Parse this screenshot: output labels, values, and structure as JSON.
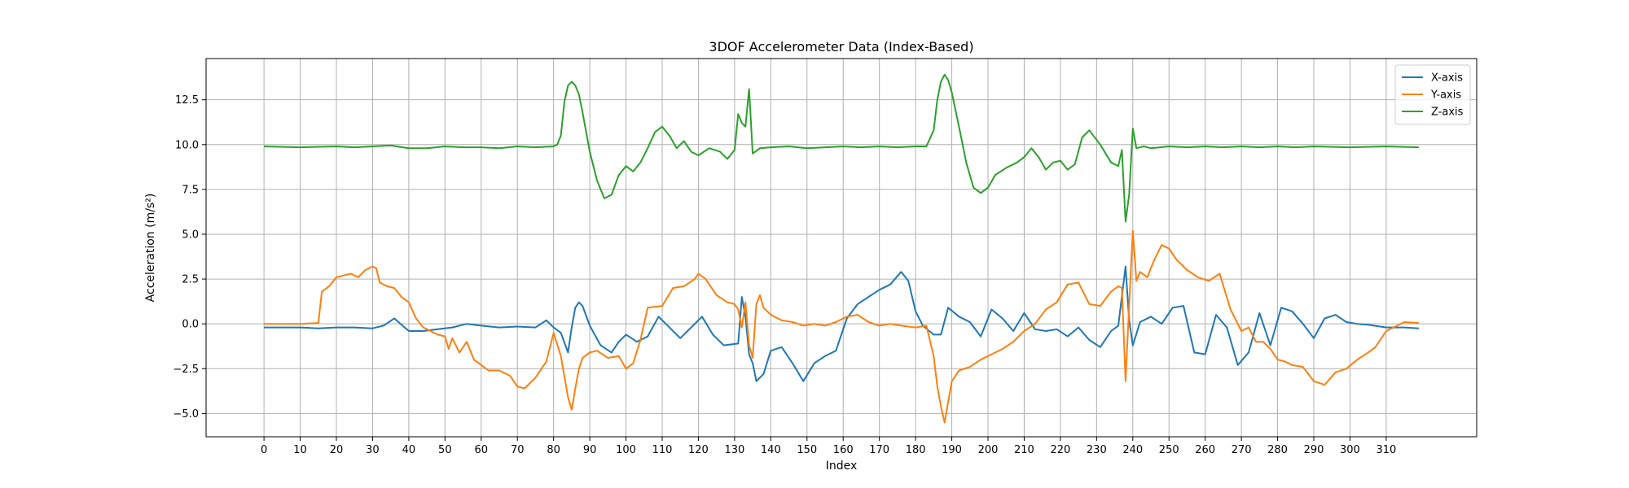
{
  "chart_data": {
    "type": "line",
    "title": "3DOF Accelerometer Data (Index-Based)",
    "xlabel": "Index",
    "ylabel": "Acceleration (m/s²)",
    "xlim": [
      -16,
      335
    ],
    "ylim": [
      -6.3,
      14.8
    ],
    "x_ticks": [
      0,
      10,
      20,
      30,
      40,
      50,
      60,
      70,
      80,
      90,
      100,
      110,
      120,
      130,
      140,
      150,
      160,
      170,
      180,
      190,
      200,
      210,
      220,
      230,
      240,
      250,
      260,
      270,
      280,
      290,
      300,
      310
    ],
    "y_ticks": [
      -5.0,
      -2.5,
      0.0,
      2.5,
      5.0,
      7.5,
      10.0,
      12.5
    ],
    "y_tick_labels": [
      "−5.0",
      "−2.5",
      "0.0",
      "2.5",
      "5.0",
      "7.5",
      "10.0",
      "12.5"
    ],
    "grid": true,
    "legend_position": "top-right",
    "series": [
      {
        "name": "X-axis",
        "color": "#1f77b4",
        "x": [
          0,
          10,
          15,
          20,
          25,
          30,
          33,
          36,
          40,
          44,
          48,
          52,
          56,
          60,
          65,
          70,
          75,
          78,
          80,
          82,
          84,
          85,
          86,
          87,
          88,
          90,
          93,
          96,
          98,
          100,
          103,
          106,
          109,
          112,
          115,
          118,
          121,
          124,
          127,
          131,
          132,
          133,
          134,
          135,
          136,
          138,
          140,
          143,
          146,
          149,
          152,
          155,
          158,
          161,
          164,
          167,
          170,
          173,
          176,
          178,
          180,
          182,
          185,
          187,
          189,
          192,
          195,
          198,
          201,
          204,
          207,
          210,
          213,
          216,
          219,
          222,
          225,
          228,
          231,
          234,
          236,
          238,
          239,
          240,
          242,
          245,
          248,
          251,
          254,
          257,
          260,
          263,
          266,
          269,
          272,
          275,
          278,
          281,
          284,
          287,
          290,
          293,
          296,
          299,
          302,
          305,
          310,
          315,
          319
        ],
        "y": [
          -0.2,
          -0.2,
          -0.25,
          -0.2,
          -0.2,
          -0.25,
          -0.1,
          0.3,
          -0.4,
          -0.4,
          -0.3,
          -0.2,
          0.0,
          -0.1,
          -0.2,
          -0.15,
          -0.2,
          0.2,
          -0.2,
          -0.5,
          -1.6,
          -0.2,
          0.9,
          1.2,
          1.0,
          -0.1,
          -1.2,
          -1.6,
          -1.0,
          -0.6,
          -1.0,
          -0.7,
          0.4,
          -0.2,
          -0.8,
          -0.2,
          0.4,
          -0.6,
          -1.2,
          -1.1,
          1.5,
          0.4,
          -1.7,
          -2.2,
          -3.2,
          -2.8,
          -1.5,
          -1.3,
          -2.2,
          -3.2,
          -2.2,
          -1.8,
          -1.5,
          0.3,
          1.1,
          1.5,
          1.9,
          2.2,
          2.9,
          2.4,
          0.7,
          -0.1,
          -0.6,
          -0.6,
          0.9,
          0.4,
          0.1,
          -0.7,
          0.8,
          0.3,
          -0.4,
          0.6,
          -0.3,
          -0.4,
          -0.3,
          -0.7,
          -0.2,
          -0.9,
          -1.3,
          -0.4,
          -0.1,
          3.2,
          0.2,
          -1.2,
          0.1,
          0.4,
          0.0,
          0.9,
          1.0,
          -1.6,
          -1.7,
          0.5,
          -0.2,
          -2.3,
          -1.6,
          0.6,
          -1.2,
          0.9,
          0.7,
          0.0,
          -0.8,
          0.3,
          0.5,
          0.1,
          0.0,
          -0.05,
          -0.2,
          -0.2,
          -0.25
        ]
      },
      {
        "name": "Y-axis",
        "color": "#ff7f0e",
        "x": [
          0,
          5,
          10,
          15,
          16,
          18,
          20,
          22,
          24,
          26,
          28,
          30,
          31,
          32,
          34,
          36,
          38,
          40,
          42,
          44,
          46,
          48,
          50,
          51,
          52,
          54,
          56,
          58,
          60,
          62,
          65,
          68,
          70,
          72,
          75,
          78,
          80,
          82,
          84,
          85,
          86,
          87,
          88,
          90,
          92,
          95,
          98,
          100,
          102,
          104,
          106,
          110,
          113,
          116,
          119,
          120,
          122,
          125,
          128,
          130,
          131,
          132,
          133,
          134,
          135,
          136,
          137,
          138,
          140,
          143,
          146,
          149,
          152,
          155,
          158,
          161,
          164,
          167,
          170,
          173,
          176,
          180,
          183,
          185,
          186,
          187,
          188,
          190,
          192,
          195,
          198,
          201,
          204,
          207,
          210,
          213,
          216,
          219,
          222,
          225,
          228,
          231,
          234,
          236,
          237,
          238,
          239,
          240,
          241,
          242,
          244,
          246,
          248,
          250,
          252,
          255,
          258,
          261,
          264,
          267,
          270,
          272,
          274,
          276,
          278,
          280,
          282,
          284,
          287,
          290,
          293,
          296,
          299,
          302,
          305,
          307,
          310,
          315,
          319
        ],
        "y": [
          0.0,
          0.0,
          0.0,
          0.05,
          1.8,
          2.1,
          2.6,
          2.7,
          2.8,
          2.6,
          3.0,
          3.2,
          3.1,
          2.3,
          2.1,
          2.0,
          1.5,
          1.2,
          0.3,
          -0.2,
          -0.4,
          -0.6,
          -0.7,
          -1.4,
          -0.8,
          -1.6,
          -1.0,
          -2.0,
          -2.3,
          -2.6,
          -2.6,
          -2.9,
          -3.5,
          -3.6,
          -3.0,
          -2.1,
          -0.5,
          -1.8,
          -4.1,
          -4.8,
          -3.6,
          -2.5,
          -1.9,
          -1.6,
          -1.5,
          -1.9,
          -1.8,
          -2.5,
          -2.2,
          -0.9,
          0.9,
          1.0,
          2.0,
          2.1,
          2.5,
          2.8,
          2.5,
          1.6,
          1.2,
          1.1,
          0.8,
          -0.2,
          1.2,
          -1.2,
          -1.9,
          1.1,
          1.6,
          0.9,
          0.5,
          0.2,
          0.1,
          -0.1,
          0.0,
          -0.1,
          0.1,
          0.4,
          0.5,
          0.1,
          -0.1,
          0.0,
          -0.1,
          -0.2,
          -0.1,
          -1.8,
          -3.5,
          -4.6,
          -5.5,
          -3.2,
          -2.6,
          -2.4,
          -2.0,
          -1.7,
          -1.4,
          -1.0,
          -0.4,
          0.0,
          0.8,
          1.2,
          2.2,
          2.3,
          1.1,
          1.0,
          1.8,
          2.1,
          2.0,
          -3.2,
          1.0,
          5.2,
          2.4,
          2.9,
          2.6,
          3.6,
          4.4,
          4.2,
          3.6,
          3.0,
          2.6,
          2.4,
          2.8,
          0.8,
          -0.4,
          -0.2,
          -1.0,
          -1.0,
          -1.4,
          -2.0,
          -2.1,
          -2.3,
          -2.4,
          -3.2,
          -3.4,
          -2.7,
          -2.5,
          -2.0,
          -1.6,
          -1.3,
          -0.4,
          0.1,
          0.05
        ]
      },
      {
        "name": "Z-axis",
        "color": "#2ca02c",
        "x": [
          0,
          10,
          20,
          25,
          30,
          35,
          40,
          45,
          50,
          55,
          60,
          65,
          70,
          75,
          80,
          81,
          82,
          83,
          84,
          85,
          86,
          87,
          88,
          90,
          92,
          94,
          96,
          98,
          100,
          102,
          104,
          106,
          108,
          110,
          112,
          114,
          116,
          118,
          120,
          123,
          126,
          128,
          130,
          131,
          132,
          133,
          134,
          135,
          137,
          140,
          145,
          150,
          155,
          160,
          165,
          170,
          175,
          180,
          183,
          185,
          186,
          187,
          188,
          189,
          190,
          192,
          194,
          196,
          198,
          200,
          202,
          205,
          208,
          210,
          212,
          214,
          216,
          218,
          220,
          222,
          224,
          226,
          228,
          231,
          234,
          236,
          237,
          238,
          239,
          240,
          241,
          243,
          245,
          250,
          255,
          260,
          265,
          270,
          275,
          280,
          285,
          290,
          300,
          310,
          319
        ],
        "y": [
          9.9,
          9.85,
          9.9,
          9.85,
          9.9,
          9.95,
          9.8,
          9.8,
          9.9,
          9.85,
          9.85,
          9.8,
          9.9,
          9.85,
          9.9,
          10.0,
          10.5,
          12.4,
          13.3,
          13.5,
          13.3,
          12.8,
          11.8,
          9.6,
          8.0,
          7.0,
          7.2,
          8.3,
          8.8,
          8.5,
          9.0,
          9.8,
          10.7,
          11.0,
          10.5,
          9.8,
          10.2,
          9.6,
          9.4,
          9.8,
          9.6,
          9.2,
          9.7,
          11.7,
          11.2,
          11.0,
          13.1,
          9.5,
          9.8,
          9.85,
          9.9,
          9.8,
          9.85,
          9.9,
          9.85,
          9.9,
          9.85,
          9.9,
          9.9,
          10.8,
          12.5,
          13.5,
          13.9,
          13.6,
          12.9,
          11.0,
          9.0,
          7.6,
          7.3,
          7.6,
          8.3,
          8.7,
          9.0,
          9.3,
          9.8,
          9.3,
          8.6,
          9.0,
          9.1,
          8.6,
          8.9,
          10.4,
          10.8,
          10.0,
          9.0,
          8.8,
          9.7,
          5.7,
          7.2,
          10.9,
          9.8,
          9.9,
          9.8,
          9.9,
          9.85,
          9.9,
          9.85,
          9.9,
          9.85,
          9.9,
          9.85,
          9.9,
          9.85,
          9.9,
          9.85
        ]
      }
    ]
  }
}
